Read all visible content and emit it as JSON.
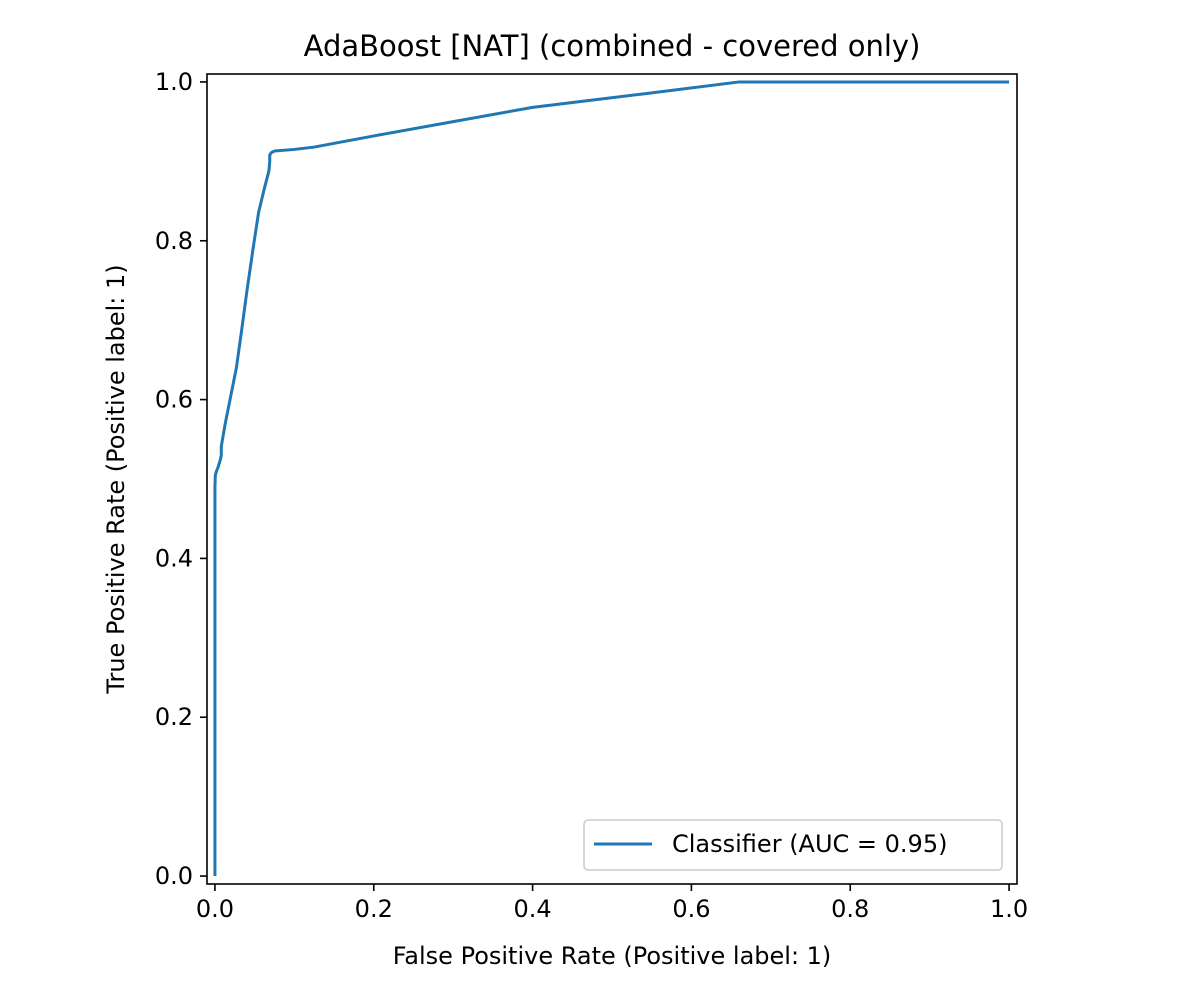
{
  "chart_data": {
    "type": "line",
    "title": "AdaBoost [NAT] (combined - covered only)",
    "xlabel": "False Positive Rate (Positive label: 1)",
    "ylabel": "True Positive Rate (Positive label: 1)",
    "xlim": [
      -0.01,
      1.01
    ],
    "ylim": [
      -0.01,
      1.01
    ],
    "xticks": [
      0.0,
      0.2,
      0.4,
      0.6,
      0.8,
      1.0
    ],
    "yticks": [
      0.0,
      0.2,
      0.4,
      0.6,
      0.8,
      1.0
    ],
    "xtick_labels": [
      "0.0",
      "0.2",
      "0.4",
      "0.6",
      "0.8",
      "1.0"
    ],
    "ytick_labels": [
      "0.0",
      "0.2",
      "0.4",
      "0.6",
      "0.8",
      "1.0"
    ],
    "grid": false,
    "legend_position": "lower-right",
    "series": [
      {
        "name": "Classifier (AUC = 0.95)",
        "color": "#1f77b4",
        "x": [
          0.0,
          0.0,
          0.0005,
          0.002,
          0.004,
          0.007,
          0.008,
          0.008,
          0.013,
          0.02,
          0.027,
          0.034,
          0.04,
          0.048,
          0.055,
          0.056,
          0.062,
          0.068,
          0.069,
          0.069,
          0.071,
          0.075,
          0.1,
          0.125,
          0.2,
          0.3,
          0.4,
          0.54,
          0.66,
          0.75,
          1.0
        ],
        "y": [
          0.0,
          0.49,
          0.505,
          0.51,
          0.515,
          0.525,
          0.53,
          0.541,
          0.57,
          0.605,
          0.64,
          0.69,
          0.735,
          0.79,
          0.836,
          0.84,
          0.865,
          0.888,
          0.9,
          0.908,
          0.911,
          0.913,
          0.915,
          0.918,
          0.932,
          0.95,
          0.968,
          0.985,
          1.0,
          1.0,
          1.0
        ]
      }
    ]
  }
}
